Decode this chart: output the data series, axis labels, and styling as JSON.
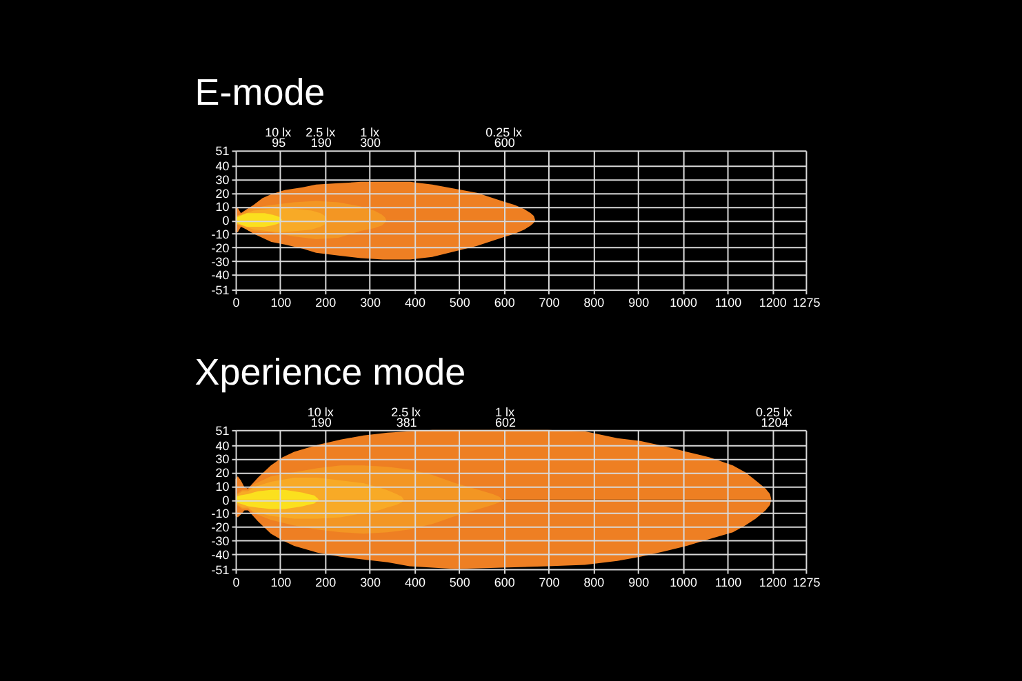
{
  "chart_data": [
    {
      "type": "area",
      "title": "E-mode",
      "xlim": [
        0,
        1275
      ],
      "xticks": [
        0,
        100,
        200,
        300,
        400,
        500,
        600,
        700,
        800,
        900,
        1000,
        1100,
        1200,
        1275
      ],
      "ylim": [
        -51,
        51
      ],
      "yticks": [
        51,
        40,
        30,
        20,
        10,
        0,
        -10,
        -20,
        -30,
        -40,
        -51
      ],
      "x2lim": [
        0,
        1275
      ],
      "x2ticks": [
        95,
        190,
        300,
        600
      ],
      "grid": true,
      "annotations": [
        "10 lx",
        "2.5 lx",
        "1 lx",
        "0.25 lx"
      ],
      "series": [
        {
          "color": "#ee7f22",
          "x": [
            0,
            5,
            12,
            25,
            40,
            60,
            80,
            110,
            150,
            180,
            230,
            280,
            330,
            390,
            440,
            490,
            540,
            595,
            625,
            646,
            660,
            667,
            670
          ],
          "values": [
            9,
            9,
            5,
            8,
            11,
            16,
            19,
            22,
            24,
            26,
            27,
            28,
            28,
            28,
            26,
            23,
            20,
            14,
            11,
            8,
            5,
            3,
            0
          ]
        },
        {
          "color": "#ee7f23",
          "x": [
            0,
            5,
            12,
            25,
            40,
            60,
            80,
            110,
            150,
            180,
            230,
            280,
            330,
            390,
            440,
            490,
            540,
            595,
            625,
            646,
            660,
            667,
            670
          ],
          "values": [
            -9,
            -9,
            -5,
            -7,
            -10,
            -13,
            -16,
            -18,
            -21,
            -24,
            -26,
            -28,
            -29,
            -29,
            -27,
            -23,
            -19,
            -13,
            -10,
            -7,
            -4,
            -2,
            0
          ]
        },
        {
          "color": "#f39623",
          "x": [
            2,
            10,
            30,
            60,
            80,
            130,
            180,
            230,
            280,
            310,
            327,
            334,
            337
          ],
          "values": [
            3,
            4,
            8,
            10,
            11,
            13,
            14,
            13,
            10,
            7,
            4,
            2,
            0
          ]
        },
        {
          "color": "#f39624",
          "x": [
            2,
            10,
            30,
            60,
            80,
            130,
            180,
            230,
            280,
            310,
            327,
            334,
            337
          ],
          "values": [
            -3,
            -4,
            -8,
            -9,
            -9,
            -12,
            -14,
            -13,
            -8,
            -6,
            -4,
            -2,
            0
          ]
        },
        {
          "color": "#f8aa26",
          "x": [
            2,
            15,
            40,
            70,
            100,
            140,
            170,
            190,
            200,
            204
          ],
          "values": [
            3,
            4,
            7,
            8,
            9,
            8,
            7,
            5,
            3,
            0
          ]
        },
        {
          "color": "#f8aa27",
          "x": [
            2,
            15,
            40,
            70,
            100,
            140,
            170,
            190,
            200,
            204
          ],
          "values": [
            -3,
            -4,
            -7,
            -8,
            -9,
            -8,
            -7,
            -5,
            -3,
            0
          ]
        },
        {
          "color": "#fbe01e",
          "x": [
            3,
            10,
            25,
            45,
            65,
            80,
            92,
            100,
            104
          ],
          "values": [
            2,
            3,
            5,
            5,
            5,
            4,
            3,
            2,
            0
          ]
        },
        {
          "color": "#fbe01f",
          "x": [
            3,
            10,
            25,
            45,
            65,
            80,
            92,
            100,
            104
          ],
          "values": [
            -2,
            -3,
            -5,
            -5,
            -5,
            -4,
            -3,
            -2,
            0
          ]
        }
      ]
    },
    {
      "type": "area",
      "title": "Xperience mode",
      "xlim": [
        0,
        1275
      ],
      "xticks": [
        0,
        100,
        200,
        300,
        400,
        500,
        600,
        700,
        800,
        900,
        1000,
        1100,
        1200,
        1275
      ],
      "ylim": [
        -51,
        51
      ],
      "yticks": [
        51,
        40,
        30,
        20,
        10,
        0,
        -10,
        -20,
        -30,
        -40,
        -51
      ],
      "x2lim": [
        0,
        1275
      ],
      "x2ticks": [
        190,
        381,
        602,
        1204
      ],
      "grid": true,
      "annotations": [
        "10 lx",
        "2.5 lx",
        "1 lx",
        "0.25 lx"
      ],
      "series": [
        {
          "color": "#ee7f22",
          "x": [
            0,
            5,
            12,
            20,
            28,
            50,
            79,
            105,
            131,
            183,
            235,
            286,
            340,
            389,
            440,
            492,
            596,
            699,
            781,
            854,
            905,
            960,
            1009,
            1060,
            1112,
            1140,
            1163,
            1185,
            1195,
            1198
          ],
          "values": [
            15,
            17,
            14,
            9,
            8,
            16,
            25,
            31,
            35,
            40,
            44,
            47,
            49,
            50,
            51,
            51,
            51,
            51,
            50,
            45,
            43,
            39,
            35,
            31,
            25,
            20,
            14,
            8,
            4,
            0
          ]
        },
        {
          "color": "#ee7f23",
          "x": [
            0,
            5,
            12,
            20,
            28,
            50,
            79,
            105,
            131,
            183,
            235,
            286,
            340,
            389,
            440,
            492,
            596,
            699,
            781,
            854,
            905,
            960,
            1009,
            1060,
            1112,
            1140,
            1163,
            1185,
            1195,
            1198
          ],
          "values": [
            -12,
            -13,
            -11,
            -8,
            -8,
            -16,
            -25,
            -30,
            -34,
            -39,
            -42,
            -44,
            -46,
            -49,
            -50,
            -51,
            -50,
            -49,
            -48,
            -45,
            -42,
            -38,
            -34,
            -29,
            -24,
            -19,
            -14,
            -8,
            -4,
            0
          ]
        },
        {
          "color": "#f39623",
          "x": [
            2,
            15,
            28,
            40,
            79,
            130,
            183,
            235,
            286,
            340,
            389,
            440,
            492,
            544,
            575,
            590,
            596
          ],
          "values": [
            4,
            7,
            7,
            11,
            17,
            20,
            23,
            25,
            25,
            24,
            22,
            18,
            12,
            7,
            4,
            2,
            0
          ]
        },
        {
          "color": "#f39624",
          "x": [
            2,
            15,
            28,
            40,
            79,
            130,
            183,
            235,
            286,
            340,
            389,
            440,
            492,
            544,
            575,
            590,
            596
          ],
          "values": [
            -4,
            -7,
            -7,
            -10,
            -15,
            -19,
            -22,
            -24,
            -25,
            -24,
            -22,
            -18,
            -12,
            -7,
            -4,
            -2,
            0
          ]
        },
        {
          "color": "#f8aa26",
          "x": [
            2,
            15,
            28,
            40,
            79,
            131,
            183,
            235,
            286,
            320,
            338,
            360,
            372,
            376
          ],
          "values": [
            3,
            6,
            6,
            9,
            13,
            16,
            16,
            14,
            12,
            9,
            7,
            4,
            2,
            0
          ]
        },
        {
          "color": "#f8aa27",
          "x": [
            2,
            15,
            28,
            40,
            79,
            131,
            183,
            235,
            286,
            320,
            338,
            360,
            372,
            376
          ],
          "values": [
            -3,
            -6,
            -6,
            -9,
            -12,
            -14,
            -14,
            -13,
            -10,
            -8,
            -6,
            -4,
            -2,
            0
          ]
        },
        {
          "color": "#fbe01e",
          "x": [
            2,
            10,
            28,
            50,
            79,
            110,
            131,
            150,
            162,
            176,
            183,
            186
          ],
          "values": [
            2,
            3,
            4,
            6,
            7,
            7,
            6,
            5,
            4,
            3,
            1,
            0
          ]
        },
        {
          "color": "#fbe01f",
          "x": [
            2,
            10,
            28,
            50,
            79,
            110,
            131,
            150,
            162,
            176,
            183,
            186
          ],
          "values": [
            -2,
            -3,
            -5,
            -6,
            -7,
            -7,
            -6,
            -5,
            -4,
            -3,
            -1,
            0
          ]
        }
      ]
    }
  ]
}
